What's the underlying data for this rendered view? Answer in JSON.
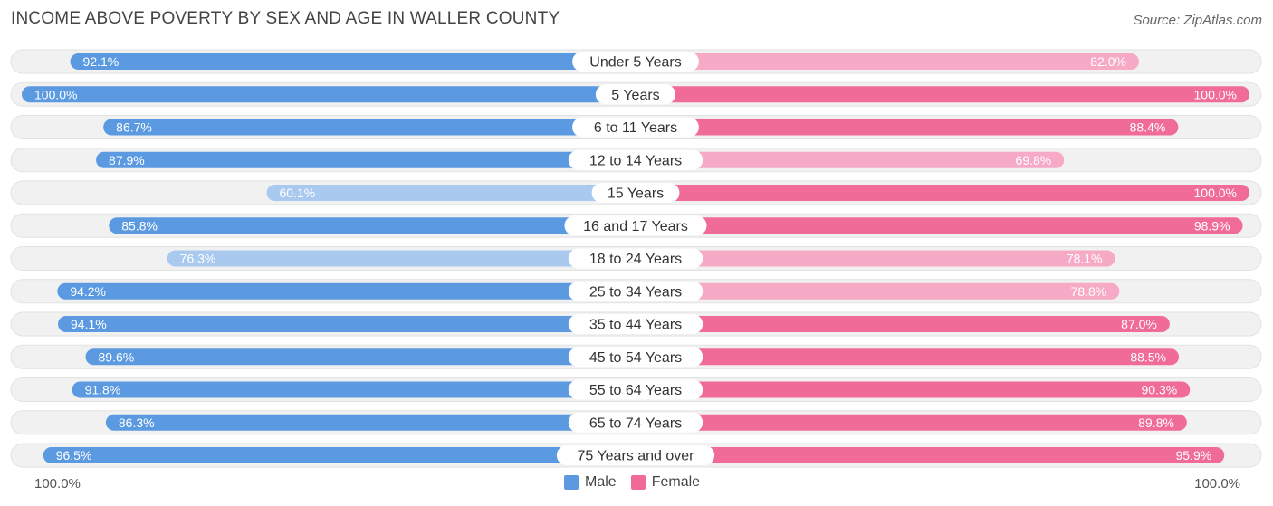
{
  "title": "INCOME ABOVE POVERTY BY SEX AND AGE IN WALLER COUNTY",
  "source": "Source: ZipAtlas.com",
  "axis": {
    "left_label": "100.0%",
    "right_label": "100.0%"
  },
  "legend": {
    "male_label": "Male",
    "female_label": "Female"
  },
  "colors": {
    "male_dark": "#5b9ae0",
    "male_light": "#a9c9ee",
    "female_dark": "#f06b97",
    "female_light": "#f6aac5",
    "track": "#f1f1f1"
  },
  "chart_data": {
    "type": "bar",
    "orientation": "horizontal-diverging",
    "title": "INCOME ABOVE POVERTY BY SEX AND AGE IN WALLER COUNTY",
    "xlim": [
      0,
      100
    ],
    "categories": [
      "Under 5 Years",
      "5 Years",
      "6 to 11 Years",
      "12 to 14 Years",
      "15 Years",
      "16 and 17 Years",
      "18 to 24 Years",
      "25 to 34 Years",
      "35 to 44 Years",
      "45 to 54 Years",
      "55 to 64 Years",
      "65 to 74 Years",
      "75 Years and over"
    ],
    "series": [
      {
        "name": "Male",
        "values": [
          92.1,
          100.0,
          86.7,
          87.9,
          60.1,
          85.8,
          76.3,
          94.2,
          94.1,
          89.6,
          91.8,
          86.3,
          96.5
        ],
        "labels": [
          "92.1%",
          "100.0%",
          "86.7%",
          "87.9%",
          "60.1%",
          "85.8%",
          "76.3%",
          "94.2%",
          "94.1%",
          "89.6%",
          "91.8%",
          "86.3%",
          "96.5%"
        ]
      },
      {
        "name": "Female",
        "values": [
          82.0,
          100.0,
          88.4,
          69.8,
          100.0,
          98.9,
          78.1,
          78.8,
          87.0,
          88.5,
          90.3,
          89.8,
          95.9
        ],
        "labels": [
          "82.0%",
          "100.0%",
          "88.4%",
          "69.8%",
          "100.0%",
          "98.9%",
          "78.1%",
          "78.8%",
          "87.0%",
          "88.5%",
          "90.3%",
          "89.8%",
          "95.9%"
        ]
      }
    ]
  }
}
